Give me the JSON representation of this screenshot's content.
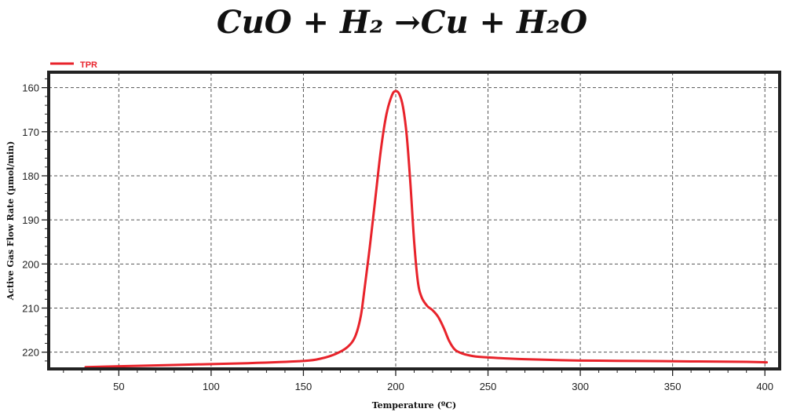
{
  "title": "CuO + H₂  →Cu + H₂O",
  "chart_data": {
    "type": "line",
    "xlabel": "Temperature (ºC)",
    "ylabel": "Active Gas Flow Rate (µmol/min)",
    "xlim": [
      12,
      408
    ],
    "ylim": [
      223.8,
      156.5
    ],
    "y_inverted": true,
    "xticks": [
      50,
      100,
      150,
      200,
      250,
      300,
      350,
      400
    ],
    "yticks": [
      160,
      170,
      180,
      190,
      200,
      210,
      220
    ],
    "grid": true,
    "legend": "top-left",
    "series": [
      {
        "name": "TPR",
        "color": "#e8232b",
        "x": [
          32,
          60,
          90,
          120,
          150,
          160,
          168,
          174,
          178,
          181,
          183,
          186,
          189,
          192,
          195,
          198,
          200,
          202,
          204,
          206,
          208,
          210,
          212,
          214,
          217,
          220,
          223,
          226,
          229,
          232,
          236,
          242,
          250,
          270,
          300,
          330,
          360,
          390,
          401
        ],
        "y": [
          223.4,
          223.1,
          222.8,
          222.5,
          222.0,
          221.4,
          220.3,
          218.8,
          216.5,
          212.0,
          206.0,
          196.0,
          185.0,
          174.0,
          166.0,
          161.7,
          160.8,
          161.5,
          164.5,
          171.0,
          182.0,
          195.0,
          204.0,
          207.5,
          209.5,
          210.5,
          212.0,
          214.5,
          217.5,
          219.4,
          220.3,
          220.9,
          221.2,
          221.6,
          221.9,
          222.0,
          222.1,
          222.2,
          222.3
        ]
      }
    ]
  }
}
